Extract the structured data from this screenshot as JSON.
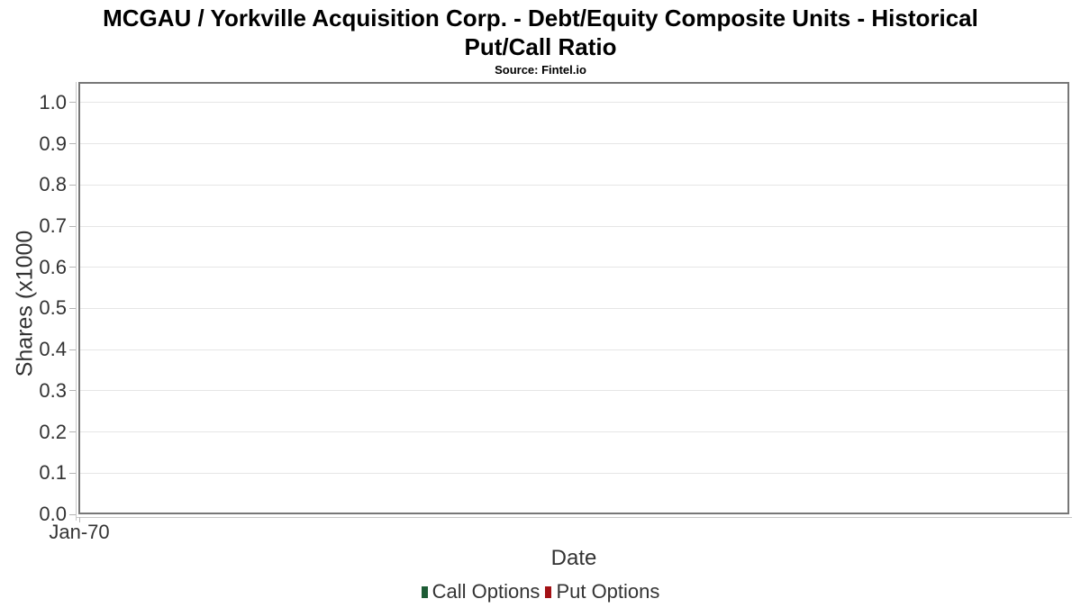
{
  "header": {
    "title_line1": "MCGAU / Yorkville Acquisition Corp. - Debt/Equity Composite Units - Historical",
    "title_line2": "Put/Call Ratio",
    "source": "Source: Fintel.io"
  },
  "chart_data": {
    "type": "column",
    "title": "MCGAU / Yorkville Acquisition Corp. - Debt/Equity Composite Units - Historical Put/Call Ratio",
    "subtitle": "Source: Fintel.io",
    "xlabel": "Date",
    "ylabel": "Shares (x1000",
    "x_ticks": [
      "Jan-70"
    ],
    "y_ticks": [
      "1.0",
      "0.9",
      "0.8",
      "0.7",
      "0.6",
      "0.5",
      "0.4",
      "0.3",
      "0.2",
      "0.1",
      "0.0"
    ],
    "ylim": [
      0,
      1.05
    ],
    "y_tick_interval": 0.1,
    "grid": true,
    "legend_position": "bottom-center",
    "series": [
      {
        "name": "Call Options",
        "color": "#1d5c35",
        "x": [],
        "values": []
      },
      {
        "name": "Put Options",
        "color": "#a31115",
        "x": [],
        "values": []
      }
    ]
  },
  "colors": {
    "title_text": "#000000",
    "axis_text": "#333333",
    "plot_border": "#777777",
    "axis_line": "#c8c8c8",
    "tick_mark": "#b4b4b4",
    "gridline": "#e6e6e6",
    "background": "#ffffff"
  }
}
